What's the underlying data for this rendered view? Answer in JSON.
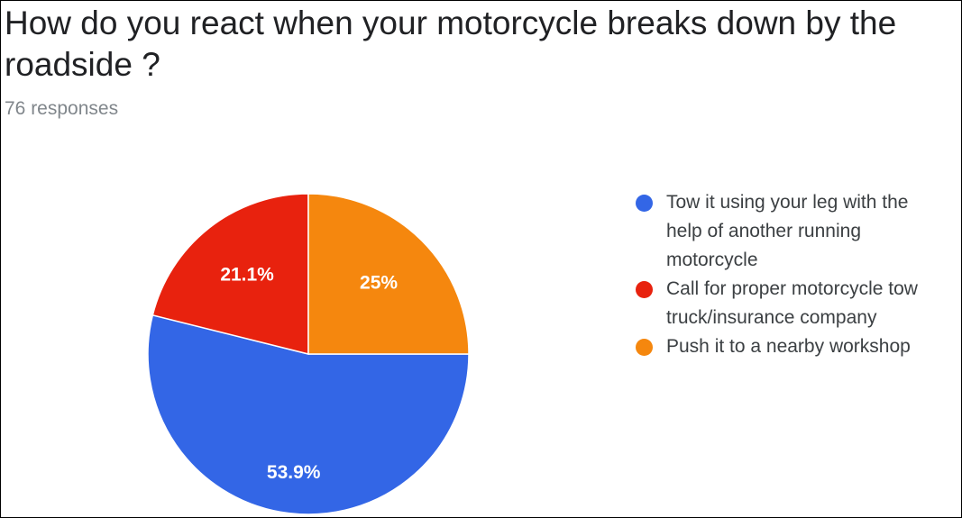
{
  "chart_data": {
    "type": "pie",
    "title": "How do you react when your motorcycle breaks down by the roadside ?",
    "subtitle": "76 responses",
    "categories": [
      "Tow it using your leg with the help of another running motorcycle",
      "Call for proper motorcycle tow truck/insurance company",
      "Push it to a nearby workshop"
    ],
    "values": [
      53.9,
      21.1,
      25
    ],
    "value_labels": [
      "53.9%",
      "21.1%",
      "25%"
    ],
    "colors": [
      "#3366e6",
      "#e8220e",
      "#f5870e"
    ],
    "legend": "right"
  }
}
